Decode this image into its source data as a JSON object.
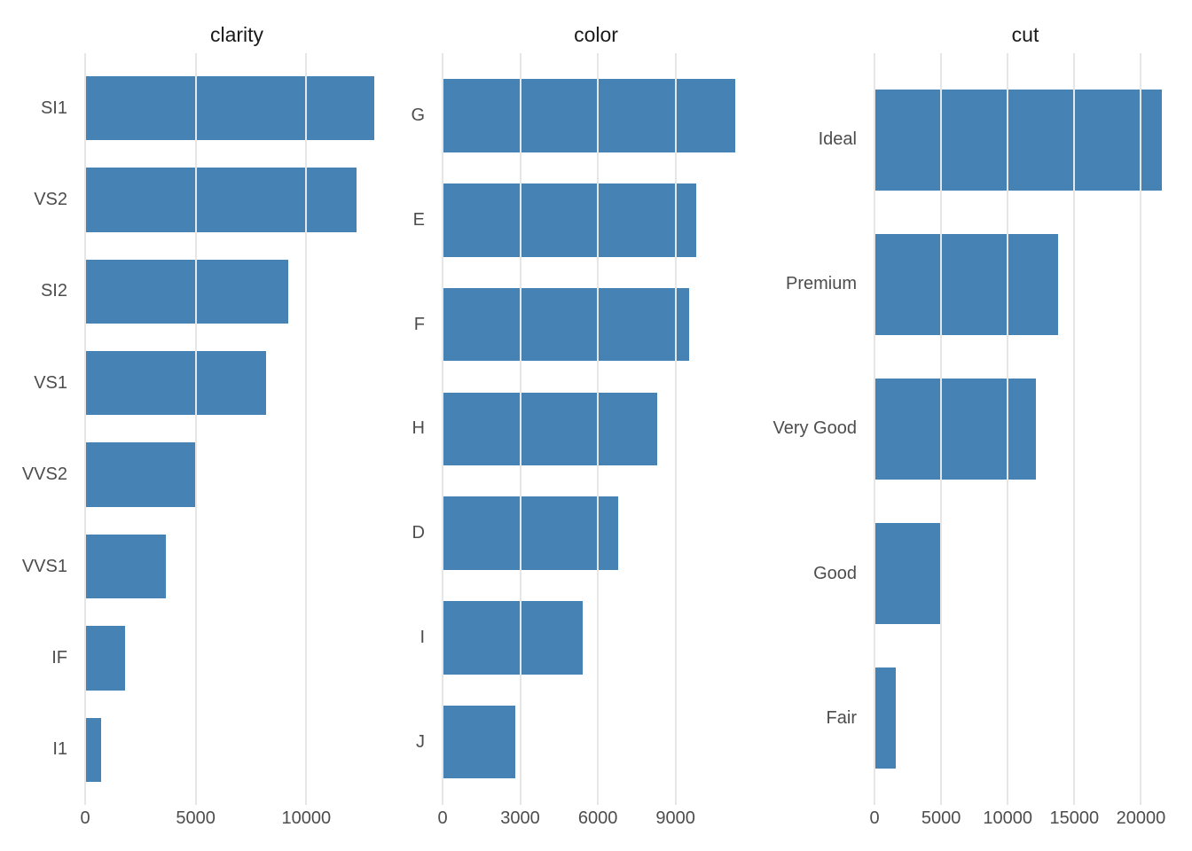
{
  "figure": {
    "type": "faceted-bar-charts",
    "background": "#FFFFFF"
  },
  "colors": {
    "bar_fill": "#4682B4",
    "gridline": "#E6E6E6",
    "axis_text": "#4D4D4D",
    "title_text": "#1A1A1A"
  },
  "chart_data": [
    {
      "type": "bar",
      "orientation": "horizontal",
      "title": "clarity",
      "categories": [
        "SI1",
        "VS2",
        "SI2",
        "VS1",
        "VVS2",
        "VVS1",
        "IF",
        "I1"
      ],
      "values": [
        13065,
        12258,
        9194,
        8171,
        5066,
        3655,
        1790,
        741
      ],
      "xticks": [
        0,
        5000,
        10000
      ],
      "xlim": [
        0,
        13718
      ],
      "xlabel": "",
      "ylabel": "",
      "grid": "major-x-only",
      "legend": "none"
    },
    {
      "type": "bar",
      "orientation": "horizontal",
      "title": "color",
      "categories": [
        "G",
        "E",
        "F",
        "H",
        "D",
        "I",
        "J"
      ],
      "values": [
        11292,
        9797,
        9542,
        8304,
        6775,
        5422,
        2808
      ],
      "xticks": [
        0,
        3000,
        6000,
        9000
      ],
      "xlim": [
        0,
        11857
      ],
      "xlabel": "",
      "ylabel": "",
      "grid": "major-x-only",
      "legend": "none"
    },
    {
      "type": "bar",
      "orientation": "horizontal",
      "title": "cut",
      "categories": [
        "Ideal",
        "Premium",
        "Very Good",
        "Good",
        "Fair"
      ],
      "values": [
        21551,
        13791,
        12082,
        4906,
        1610
      ],
      "xticks": [
        0,
        5000,
        10000,
        15000,
        20000
      ],
      "xlim": [
        0,
        22629
      ],
      "xlabel": "",
      "ylabel": "",
      "grid": "major-x-only",
      "legend": "none"
    }
  ]
}
